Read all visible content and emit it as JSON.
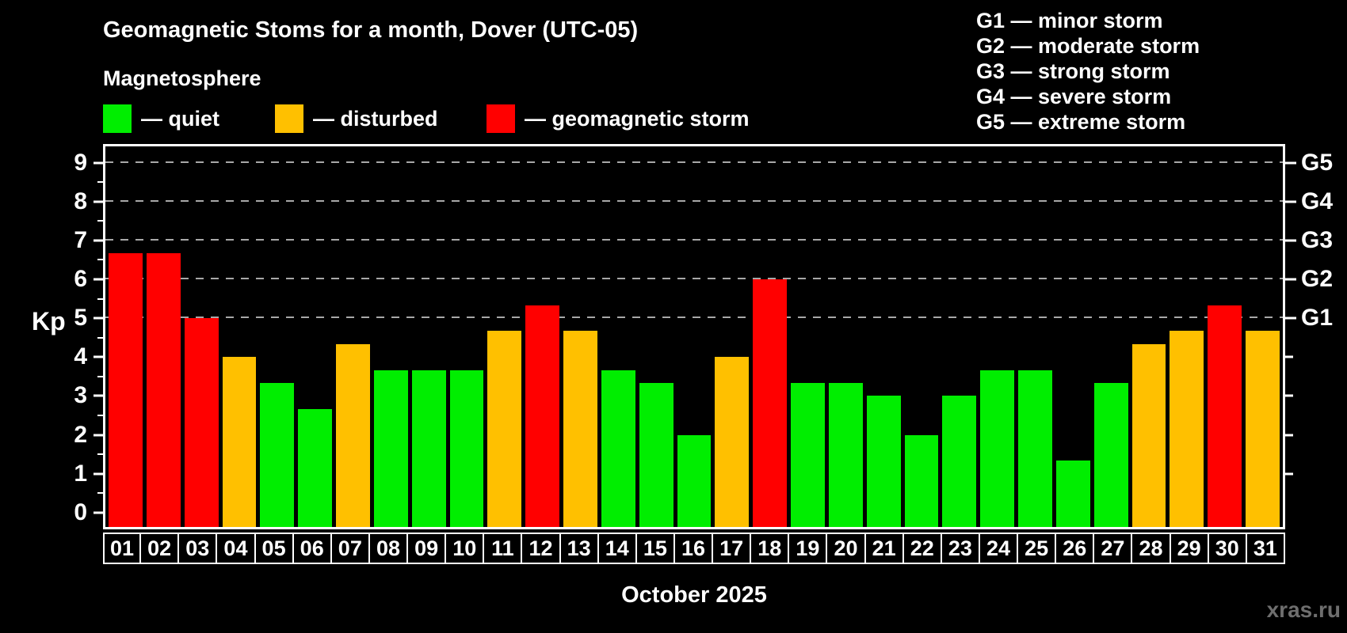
{
  "header": {
    "title": "Geomagnetic Stoms for a month, Dover (UTC-05)",
    "subtitle": "Magnetosphere"
  },
  "legend": {
    "items": [
      {
        "key": "quiet",
        "label": "— quiet"
      },
      {
        "key": "disturbed",
        "label": "— disturbed"
      },
      {
        "key": "storm",
        "label": "— geomagnetic storm"
      }
    ]
  },
  "g_legend": {
    "items": [
      "G1 — minor storm",
      "G2 — moderate storm",
      "G3 — strong storm",
      "G4 — severe storm",
      "G5 — extreme storm"
    ]
  },
  "colors": {
    "quiet": "#00ee00",
    "disturbed": "#ffc000",
    "storm": "#ff0000",
    "gridline": "#a8a8a8",
    "axis": "#ffffff",
    "watermark": "#6e6e6e"
  },
  "chart_data": {
    "type": "bar",
    "title": "Geomagnetic Stoms for a month, Dover (UTC-05)",
    "xlabel": "October 2025",
    "ylabel": "Kp",
    "ylim": [
      0,
      9
    ],
    "grid": "dashed horizontal at Kp 5-9",
    "legend_position": "top-left",
    "categories": [
      "01",
      "02",
      "03",
      "04",
      "05",
      "06",
      "07",
      "08",
      "09",
      "10",
      "11",
      "12",
      "13",
      "14",
      "15",
      "16",
      "17",
      "18",
      "19",
      "20",
      "21",
      "22",
      "23",
      "24",
      "25",
      "26",
      "27",
      "28",
      "29",
      "30",
      "31"
    ],
    "values": [
      6.67,
      6.67,
      5.0,
      4.0,
      3.33,
      2.67,
      4.33,
      3.67,
      3.67,
      3.67,
      4.67,
      5.33,
      4.67,
      3.67,
      3.33,
      2.0,
      4.0,
      6.0,
      3.33,
      3.33,
      3.0,
      2.0,
      3.0,
      3.67,
      3.67,
      1.33,
      3.33,
      4.33,
      4.67,
      5.33,
      4.67
    ],
    "statuses": [
      "storm",
      "storm",
      "storm",
      "disturbed",
      "quiet",
      "quiet",
      "disturbed",
      "quiet",
      "quiet",
      "quiet",
      "disturbed",
      "storm",
      "disturbed",
      "quiet",
      "quiet",
      "quiet",
      "disturbed",
      "storm",
      "quiet",
      "quiet",
      "quiet",
      "quiet",
      "quiet",
      "quiet",
      "quiet",
      "quiet",
      "quiet",
      "disturbed",
      "disturbed",
      "storm",
      "disturbed"
    ],
    "yticks": [
      0,
      1,
      2,
      3,
      4,
      5,
      6,
      7,
      8,
      9
    ],
    "gridlines": [
      5,
      6,
      7,
      8,
      9
    ],
    "right_axis": {
      "labels": [
        {
          "value": 5,
          "label": "G1"
        },
        {
          "value": 6,
          "label": "G2"
        },
        {
          "value": 7,
          "label": "G3"
        },
        {
          "value": 8,
          "label": "G4"
        },
        {
          "value": 9,
          "label": "G5"
        }
      ],
      "minor_ticks": [
        1,
        2,
        3,
        4
      ]
    }
  },
  "footer": {
    "month_label": "October 2025",
    "watermark": "xras.ru"
  }
}
